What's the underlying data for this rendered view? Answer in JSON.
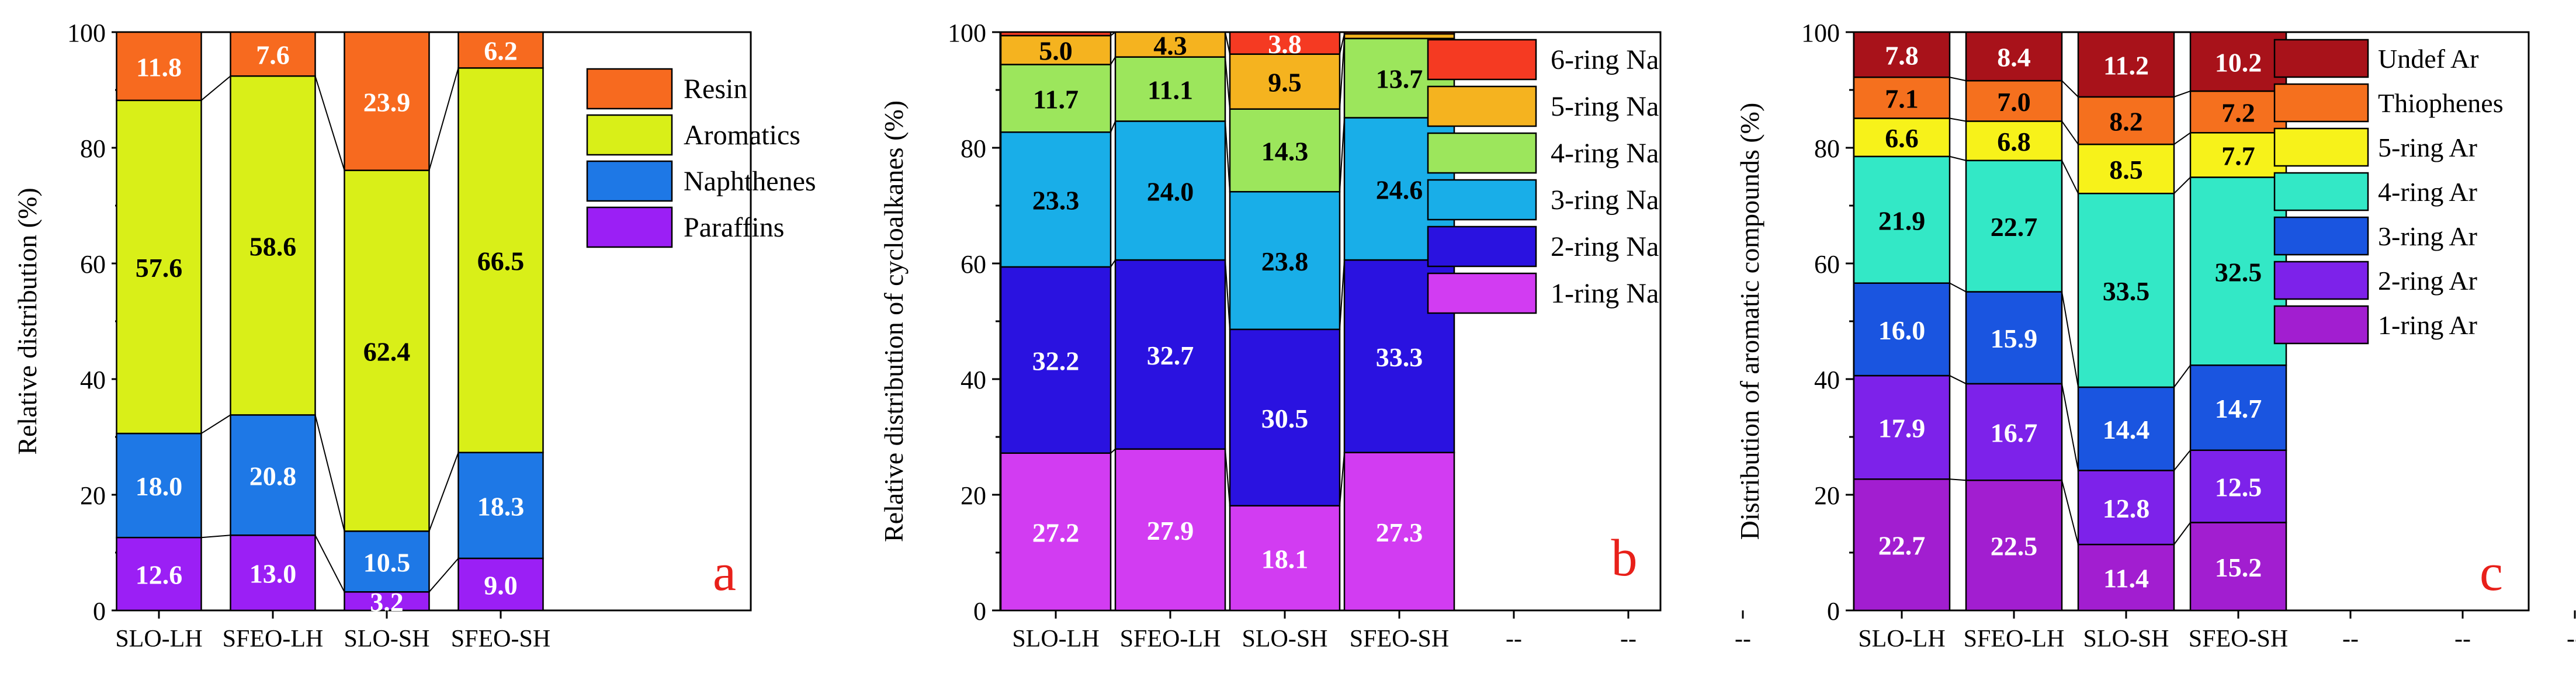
{
  "chart_data": [
    {
      "type": "bar",
      "stacked": true,
      "panel_label": "a",
      "ylabel": "Relative distribution (%)",
      "xlabel": "",
      "ylim": [
        0,
        100
      ],
      "yticks": [
        0,
        20,
        40,
        60,
        80,
        100
      ],
      "categories": [
        "SLO-LH",
        "SFEO-LH",
        "SLO-SH",
        "SFEO-SH"
      ],
      "extra_ticks": [],
      "legend_position": "top-right",
      "series": [
        {
          "name": "Paraffins",
          "color": "#9b1ff5",
          "values": [
            12.6,
            13.0,
            3.2,
            9.0
          ],
          "labels": [
            "12.6",
            "13.0",
            "3.2",
            "9.0"
          ],
          "label_color": "#ffffff"
        },
        {
          "name": "Naphthenes",
          "color": "#1e78e6",
          "values": [
            18.0,
            20.8,
            10.5,
            18.3
          ],
          "labels": [
            "18.0",
            "20.8",
            "10.5",
            "18.3"
          ],
          "label_color": "#ffffff"
        },
        {
          "name": "Aromatics",
          "color": "#d9ef18",
          "values": [
            57.6,
            58.6,
            62.4,
            66.5
          ],
          "labels": [
            "57.6",
            "58.6",
            "62.4",
            "66.5"
          ],
          "label_color": "#000000"
        },
        {
          "name": "Resin",
          "color": "#f76a1f",
          "values": [
            11.8,
            7.6,
            23.9,
            6.2
          ],
          "labels": [
            "11.8",
            "7.6",
            "23.9",
            "6.2"
          ],
          "label_color": "#ffffff"
        }
      ]
    },
    {
      "type": "bar",
      "stacked": true,
      "panel_label": "b",
      "ylabel": "Relative distribution of cycloalkanes (%)",
      "xlabel": "",
      "ylim": [
        0,
        100
      ],
      "yticks": [
        0,
        20,
        40,
        60,
        80,
        100
      ],
      "categories": [
        "SLO-LH",
        "SFEO-LH",
        "SLO-SH",
        "SFEO-SH"
      ],
      "extra_ticks": [
        "--",
        "--",
        "--"
      ],
      "legend_position": "top-right",
      "series": [
        {
          "name": "1-ring Na",
          "color": "#d23cf2",
          "values": [
            27.2,
            27.9,
            18.1,
            27.3
          ],
          "labels": [
            "27.2",
            "27.9",
            "18.1",
            "27.3"
          ],
          "label_color": "#ffffff"
        },
        {
          "name": "2-ring Na",
          "color": "#2a12e0",
          "values": [
            32.2,
            32.7,
            30.5,
            33.3
          ],
          "labels": [
            "32.2",
            "32.7",
            "30.5",
            "33.3"
          ],
          "label_color": "#ffffff"
        },
        {
          "name": "3-ring Na",
          "color": "#19aee8",
          "values": [
            23.3,
            24.0,
            23.8,
            24.6
          ],
          "labels": [
            "23.3",
            "24.0",
            "23.8",
            "24.6"
          ],
          "label_color": "#000000"
        },
        {
          "name": "4-ring Na",
          "color": "#9ce65c",
          "values": [
            11.7,
            11.1,
            14.3,
            13.7
          ],
          "labels": [
            "11.7",
            "11.1",
            "14.3",
            "13.7"
          ],
          "label_color": "#000000"
        },
        {
          "name": "5-ring Na",
          "color": "#f5b31f",
          "values": [
            5.0,
            4.3,
            9.5,
            0.8
          ],
          "labels": [
            "5.0",
            "4.3",
            "9.5",
            ""
          ],
          "label_color": "#000000"
        },
        {
          "name": "6-ring Na",
          "color": "#f53a22",
          "values": [
            0.6,
            0.0,
            3.8,
            0.3
          ],
          "labels": [
            "",
            "",
            "3.8",
            ""
          ],
          "label_color": "#ffffff"
        }
      ]
    },
    {
      "type": "bar",
      "stacked": true,
      "panel_label": "c",
      "ylabel": "Distribution of aromatic compounds (%)",
      "xlabel": "",
      "ylim": [
        0,
        100
      ],
      "yticks": [
        0,
        20,
        40,
        60,
        80,
        100
      ],
      "categories": [
        "SLO-LH",
        "SFEO-LH",
        "SLO-SH",
        "SFEO-SH"
      ],
      "extra_ticks": [
        "--",
        "--",
        "--"
      ],
      "legend_position": "top-right",
      "series": [
        {
          "name": "1-ring Ar",
          "color": "#a21ed0",
          "values": [
            22.7,
            22.5,
            11.4,
            15.2
          ],
          "labels": [
            "22.7",
            "22.5",
            "11.4",
            "15.2"
          ],
          "label_color": "#ffffff"
        },
        {
          "name": "2-ring Ar",
          "color": "#7d22ea",
          "values": [
            17.9,
            16.7,
            12.8,
            12.5
          ],
          "labels": [
            "17.9",
            "16.7",
            "12.8",
            "12.5"
          ],
          "label_color": "#ffffff"
        },
        {
          "name": "3-ring Ar",
          "color": "#1a55e0",
          "values": [
            16.0,
            15.9,
            14.4,
            14.7
          ],
          "labels": [
            "16.0",
            "15.9",
            "14.4",
            "14.7"
          ],
          "label_color": "#ffffff"
        },
        {
          "name": "4-ring Ar",
          "color": "#33e8c6",
          "values": [
            21.9,
            22.7,
            33.5,
            32.5
          ],
          "labels": [
            "21.9",
            "22.7",
            "33.5",
            "32.5"
          ],
          "label_color": "#000000"
        },
        {
          "name": "5-ring Ar",
          "color": "#f7f21a",
          "values": [
            6.6,
            6.8,
            8.5,
            7.7
          ],
          "labels": [
            "6.6",
            "6.8",
            "8.5",
            "7.7"
          ],
          "label_color": "#000000"
        },
        {
          "name": "Thiophenes",
          "color": "#f5701e",
          "values": [
            7.1,
            7.0,
            8.2,
            7.2
          ],
          "labels": [
            "7.1",
            "7.0",
            "8.2",
            "7.2"
          ],
          "label_color": "#000000"
        },
        {
          "name": "Undef Ar",
          "color": "#a8121a",
          "values": [
            7.8,
            8.4,
            11.2,
            10.2
          ],
          "labels": [
            "7.8",
            "8.4",
            "11.2",
            "10.2"
          ],
          "label_color": "#ffffff"
        }
      ]
    }
  ]
}
